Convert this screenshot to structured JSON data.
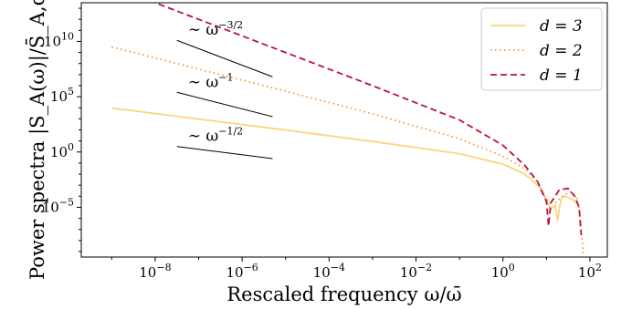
{
  "chart_data": {
    "type": "line",
    "xlabel": "Rescaled frequency ω/ω̄",
    "ylabel": "Power spectra |S_A(ω)|/S̄_A,d",
    "xscale": "log",
    "yscale": "log",
    "xlim_log10": [
      -9.7,
      2.4
    ],
    "ylim_log10": [
      -9.5,
      13.5
    ],
    "xticks": [
      {
        "exp": -8,
        "label": "10",
        "sup": "−8"
      },
      {
        "exp": -6,
        "label": "10",
        "sup": "−6"
      },
      {
        "exp": -4,
        "label": "10",
        "sup": "−4"
      },
      {
        "exp": -2,
        "label": "10",
        "sup": "−2"
      },
      {
        "exp": 0,
        "label": "10",
        "sup": "0"
      },
      {
        "exp": 2,
        "label": "10",
        "sup": "2"
      }
    ],
    "yticks": [
      {
        "exp": -5,
        "label": "10",
        "sup": "−5"
      },
      {
        "exp": 0,
        "label": "10",
        "sup": "0"
      },
      {
        "exp": 5,
        "label": "10",
        "sup": "5"
      },
      {
        "exp": 10,
        "label": "10",
        "sup": "10"
      }
    ],
    "legend": {
      "position": "top-right"
    },
    "series": [
      {
        "name": "d = 3",
        "label_var": "d",
        "label_val": "= 3",
        "color": "#fcd47c",
        "dash": "solid",
        "x_log10": [
          -9.0,
          -7.0,
          -5.0,
          -3.0,
          -1.0,
          0.0,
          0.5,
          0.8,
          1.0,
          1.1,
          1.2,
          1.26,
          1.3,
          1.35,
          1.4,
          1.5,
          1.6,
          1.7
        ],
        "y_log10": [
          3.98,
          2.98,
          1.98,
          0.95,
          -0.15,
          -1.1,
          -2.0,
          -3.0,
          -4.3,
          -5.2,
          -4.8,
          -6.2,
          -5.0,
          -4.2,
          -4.0,
          -4.1,
          -4.3,
          -4.6
        ]
      },
      {
        "name": "d = 2",
        "label_var": "d",
        "label_val": "= 2",
        "color": "#f6923a",
        "dash": "dotted",
        "x_log10": [
          -9.0,
          -7.0,
          -5.0,
          -3.0,
          -1.0,
          0.0,
          0.5,
          0.8,
          1.0,
          1.2,
          1.4,
          1.55,
          1.7,
          1.75,
          1.8,
          1.85
        ],
        "y_log10": [
          9.5,
          7.5,
          5.5,
          3.45,
          1.2,
          -0.4,
          -1.5,
          -2.7,
          -4.3,
          -4.6,
          -3.9,
          -3.6,
          -4.2,
          -5.2,
          -7.0,
          -9.3
        ]
      },
      {
        "name": "d = 1",
        "label_var": "d",
        "label_val": "= 1",
        "color": "#b81437",
        "dash": "dashed",
        "x_log10": [
          -9.0,
          -7.0,
          -5.0,
          -3.0,
          -1.0,
          0.0,
          0.5,
          0.8,
          1.0,
          1.05,
          1.1,
          1.3,
          1.5,
          1.65,
          1.75,
          1.8
        ],
        "y_log10": [
          15.0,
          12.0,
          9.0,
          6.0,
          2.9,
          0.6,
          -1.2,
          -2.7,
          -4.5,
          -6.7,
          -4.6,
          -3.4,
          -3.3,
          -4.0,
          -5.0,
          -7.5
        ]
      }
    ],
    "annotations": [
      {
        "prefix": "∼ ω",
        "exponent": "−3/2",
        "line_log10": [
          [
            -7.5,
            10.1
          ],
          [
            -5.3,
            6.8
          ]
        ]
      },
      {
        "prefix": "∼ ω",
        "exponent": "−1",
        "line_log10": [
          [
            -7.5,
            5.4
          ],
          [
            -5.3,
            3.2
          ]
        ]
      },
      {
        "prefix": "∼ ω",
        "exponent": "−1/2",
        "line_log10": [
          [
            -7.5,
            0.5
          ],
          [
            -5.3,
            -0.6
          ]
        ]
      }
    ]
  }
}
